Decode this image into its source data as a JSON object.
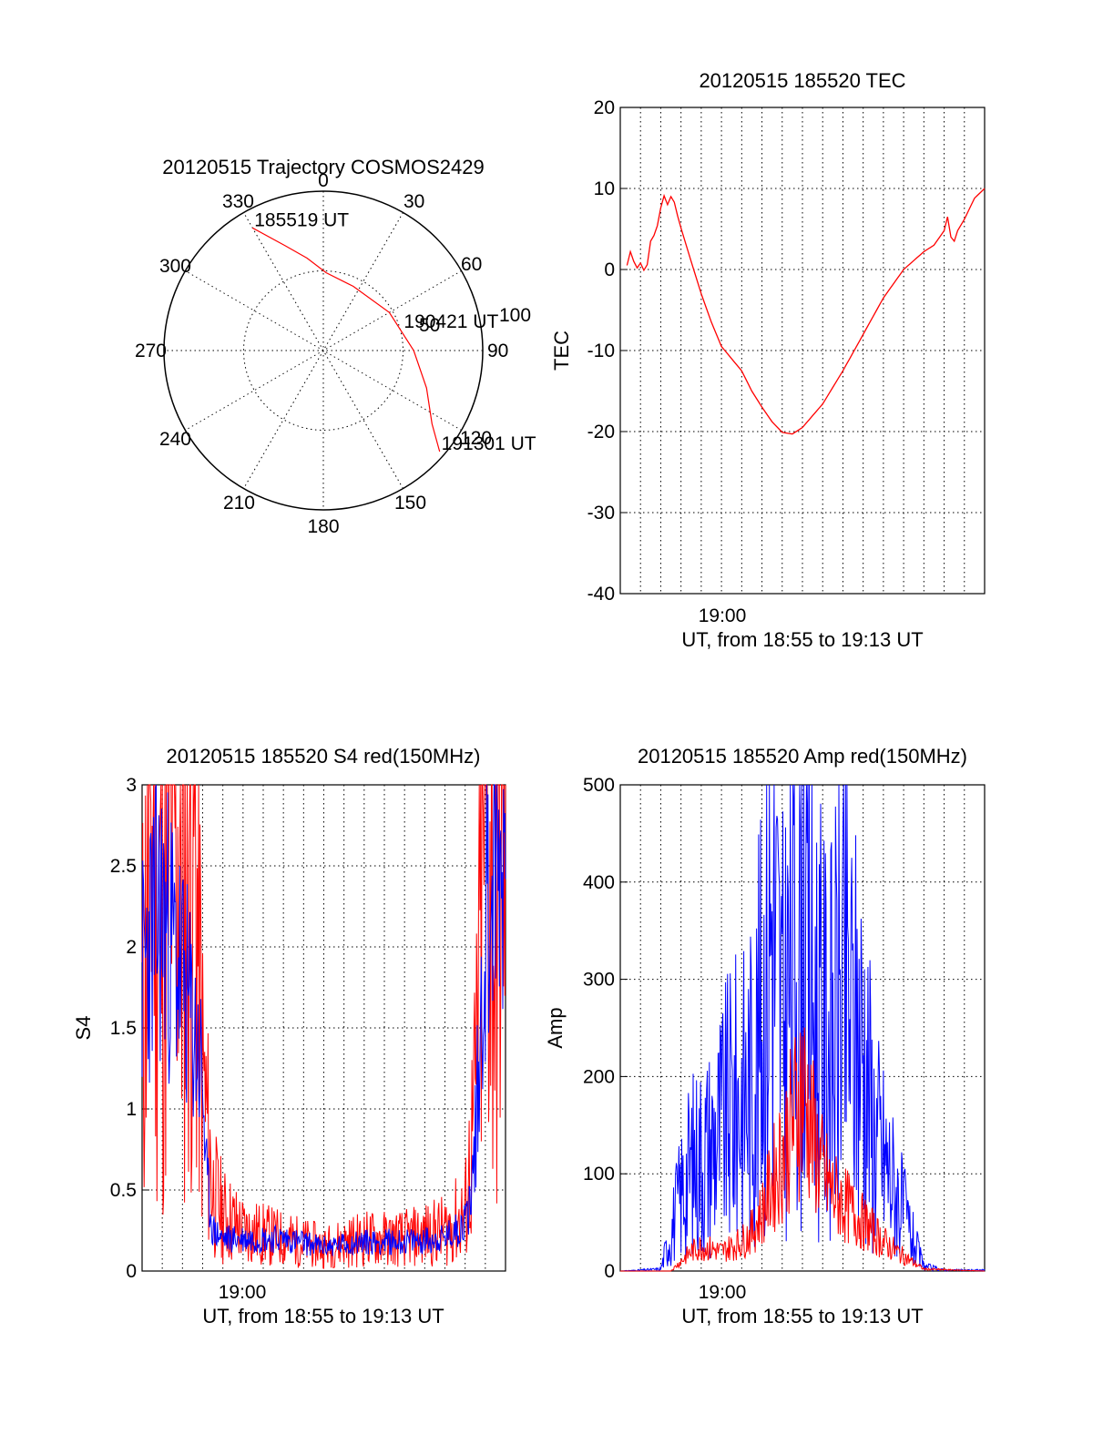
{
  "colors": {
    "red": "#ff0000",
    "blue": "#0000ff"
  },
  "chart_data": [
    {
      "type": "polar",
      "title": "20120515 Trajectory COSMOS2429",
      "angle_labels": [
        "0",
        "30",
        "60",
        "90",
        "120",
        "150",
        "180",
        "210",
        "240",
        "270",
        "300",
        "330"
      ],
      "radius_labels": [
        "50",
        "100"
      ],
      "series": [
        {
          "points": [
            {
              "az": 330,
              "el": 10
            },
            {
              "az": 340,
              "el": 27
            },
            {
              "az": 350,
              "el": 37
            },
            {
              "az": 2,
              "el": 46
            },
            {
              "az": 25,
              "el": 50
            },
            {
              "az": 60,
              "el": 47
            },
            {
              "az": 90,
              "el": 39
            },
            {
              "az": 110,
              "el": 28
            },
            {
              "az": 124,
              "el": 16
            },
            {
              "az": 131,
              "el": 3
            }
          ],
          "annotations": [
            {
              "text": "185519 UT",
              "az": 330,
              "el": 10
            },
            {
              "text": "190421 UT",
              "az": 75,
              "el": 44
            },
            {
              "text": "191301 UT",
              "az": 131,
              "el": 3
            }
          ]
        }
      ]
    },
    {
      "type": "line",
      "title": "20120515 185520 TEC",
      "xlabel": "UT, from 18:55 to 19:13 UT",
      "ylabel": "TEC",
      "xlim": [
        "18:55",
        "19:13"
      ],
      "ylim": [
        -40,
        20
      ],
      "yticks": [
        "20",
        "10",
        "0",
        "-10",
        "-20",
        "-30",
        "-40"
      ],
      "xtick_labels": [
        {
          "at": "19:00",
          "label": "19:00"
        }
      ],
      "series": [
        {
          "x": [
            "18:55:20",
            "18:55:30",
            "18:55:40",
            "18:55:50",
            "18:56:00",
            "18:56:10",
            "18:56:20",
            "18:56:30",
            "18:56:40",
            "18:56:50",
            "18:57:00",
            "18:57:10",
            "18:57:20",
            "18:57:30",
            "18:57:40",
            "18:57:50",
            "18:58:00",
            "18:58:30",
            "18:59:00",
            "18:59:30",
            "19:00:00",
            "19:01:00",
            "19:01:30",
            "19:02:00",
            "19:02:30",
            "19:03:00",
            "19:03:30",
            "19:04:00",
            "19:05:00",
            "19:06:00",
            "19:07:00",
            "19:08:00",
            "19:09:00",
            "19:10:00",
            "19:10:30",
            "19:11:00",
            "19:11:10",
            "19:11:20",
            "19:11:30",
            "19:11:40",
            "19:12:00",
            "19:12:30",
            "19:13:00"
          ],
          "y": [
            0.5,
            2.2,
            1.0,
            0.2,
            0.8,
            -0.1,
            0.6,
            3.5,
            4.2,
            5.4,
            7.6,
            9.1,
            8.0,
            9.0,
            8.3,
            6.6,
            5.1,
            1.0,
            -3.0,
            -6.5,
            -9.5,
            -12.5,
            -15.0,
            -17.0,
            -18.8,
            -20.1,
            -20.3,
            -19.5,
            -16.6,
            -12.5,
            -8.0,
            -3.5,
            0.0,
            2.2,
            3.0,
            4.8,
            6.5,
            4.0,
            3.5,
            4.8,
            6.2,
            8.8,
            10.0
          ]
        }
      ]
    },
    {
      "type": "line",
      "title": "20120515 185520 S4 red(150MHz)",
      "xlabel": "UT, from 18:55 to 19:13 UT",
      "ylabel": "S4",
      "xlim": [
        "18:55",
        "19:13"
      ],
      "ylim": [
        0,
        3
      ],
      "yticks": [
        "3",
        "2.5",
        "2",
        "1.5",
        "1",
        "0.5",
        "0"
      ],
      "xtick_labels": [
        {
          "at": "19:00",
          "label": "19:00"
        }
      ],
      "series": [
        {
          "color": "#0000ff",
          "x": [
            "18:55:00",
            "18:55:30",
            "18:56:00",
            "18:56:30",
            "18:57:00",
            "18:57:30",
            "18:58:00",
            "18:58:10",
            "18:58:30",
            "18:59:00",
            "19:00:00",
            "19:02:00",
            "19:04:00",
            "19:06:00",
            "19:08:00",
            "19:10:00",
            "19:11:00",
            "19:11:20",
            "19:11:40",
            "19:12:00",
            "19:12:30",
            "19:13:00"
          ],
          "y": [
            1.8,
            2.1,
            2.2,
            2.0,
            1.8,
            1.5,
            1.2,
            0.6,
            0.25,
            0.2,
            0.2,
            0.2,
            0.15,
            0.18,
            0.18,
            0.2,
            0.3,
            0.5,
            1.2,
            2.2,
            2.5,
            2.6
          ]
        },
        {
          "color": "#ff0000",
          "x": [
            "18:55:00",
            "18:55:30",
            "18:56:00",
            "18:56:30",
            "18:57:00",
            "18:57:30",
            "18:58:00",
            "18:58:30",
            "18:59:00",
            "19:00:00",
            "19:02:00",
            "19:04:00",
            "19:06:00",
            "19:08:00",
            "19:10:00",
            "19:11:00",
            "19:11:30",
            "19:12:00",
            "19:12:30",
            "19:13:00"
          ],
          "y": [
            1.5,
            3.0,
            2.0,
            3.0,
            2.5,
            3.0,
            1.2,
            0.5,
            0.35,
            0.25,
            0.2,
            0.15,
            0.2,
            0.2,
            0.25,
            0.35,
            1.0,
            3.0,
            2.0,
            3.0
          ]
        }
      ]
    },
    {
      "type": "line",
      "title": "20120515 185520 Amp red(150MHz)",
      "xlabel": "UT, from 18:55 to 19:13 UT",
      "ylabel": "Amp",
      "xlim": [
        "18:55",
        "19:13"
      ],
      "ylim": [
        0,
        500
      ],
      "yticks": [
        "500",
        "400",
        "300",
        "200",
        "100",
        "0"
      ],
      "xtick_labels": [
        {
          "at": "19:00",
          "label": "19:00"
        }
      ],
      "series": [
        {
          "color": "#0000ff",
          "x": [
            "18:55:00",
            "18:57:00",
            "18:57:30",
            "18:58:00",
            "18:58:30",
            "18:59:00",
            "18:59:30",
            "19:00:00",
            "19:00:30",
            "19:01:00",
            "19:01:30",
            "19:02:00",
            "19:02:30",
            "19:03:00",
            "19:03:30",
            "19:04:00",
            "19:04:30",
            "19:05:00",
            "19:05:30",
            "19:06:00",
            "19:06:30",
            "19:07:00",
            "19:07:30",
            "19:08:00",
            "19:08:30",
            "19:09:00",
            "19:09:30",
            "19:10:00",
            "19:11:00",
            "19:12:00",
            "19:13:00"
          ],
          "y": [
            0,
            2,
            40,
            80,
            110,
            120,
            130,
            150,
            170,
            180,
            200,
            260,
            380,
            250,
            320,
            420,
            280,
            250,
            240,
            300,
            250,
            240,
            150,
            120,
            90,
            60,
            30,
            5,
            1,
            1,
            1
          ]
        },
        {
          "color": "#ff0000",
          "x": [
            "18:55:00",
            "18:57:30",
            "18:58:00",
            "18:58:30",
            "18:59:00",
            "19:00:00",
            "19:01:00",
            "19:01:30",
            "19:02:00",
            "19:02:30",
            "19:03:00",
            "19:03:30",
            "19:04:00",
            "19:04:30",
            "19:05:00",
            "19:05:30",
            "19:06:00",
            "19:06:30",
            "19:07:00",
            "19:07:30",
            "19:08:00",
            "19:09:00",
            "19:10:00",
            "19:13:00"
          ],
          "y": [
            0,
            0,
            10,
            20,
            25,
            20,
            30,
            40,
            60,
            90,
            120,
            150,
            190,
            140,
            100,
            80,
            70,
            60,
            50,
            40,
            30,
            15,
            2,
            0
          ]
        }
      ]
    }
  ]
}
